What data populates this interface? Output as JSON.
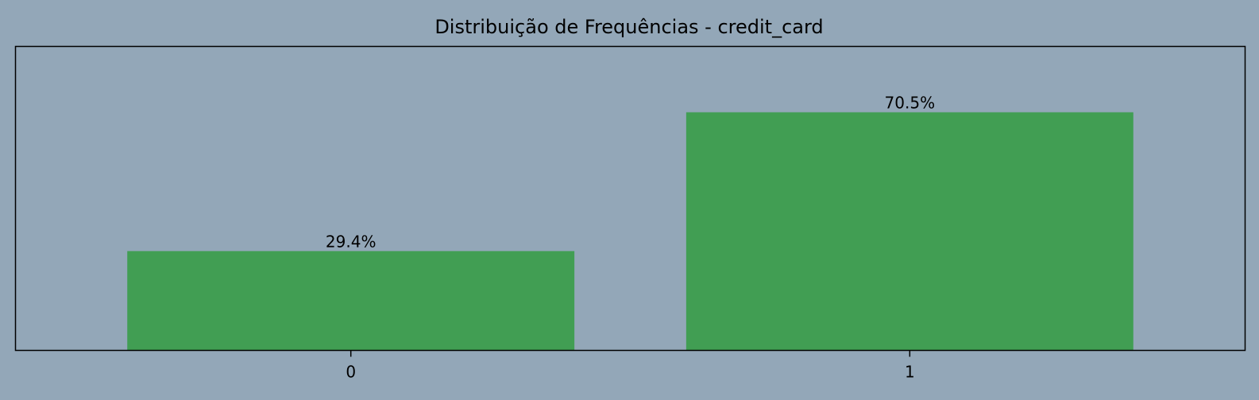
{
  "colors": {
    "background": "#93a7b8",
    "bar": "#419e53",
    "axis": "#000000"
  },
  "chart_data": {
    "type": "bar",
    "title": "Distribuição de Frequências - credit_card",
    "xlabel": "",
    "ylabel": "",
    "categories": [
      "0",
      "1"
    ],
    "values": [
      29.4,
      70.5
    ],
    "value_labels": [
      "29.4%",
      "70.5%"
    ],
    "ylim": [
      0,
      90
    ],
    "grid": false,
    "y_ticks_visible": false
  }
}
